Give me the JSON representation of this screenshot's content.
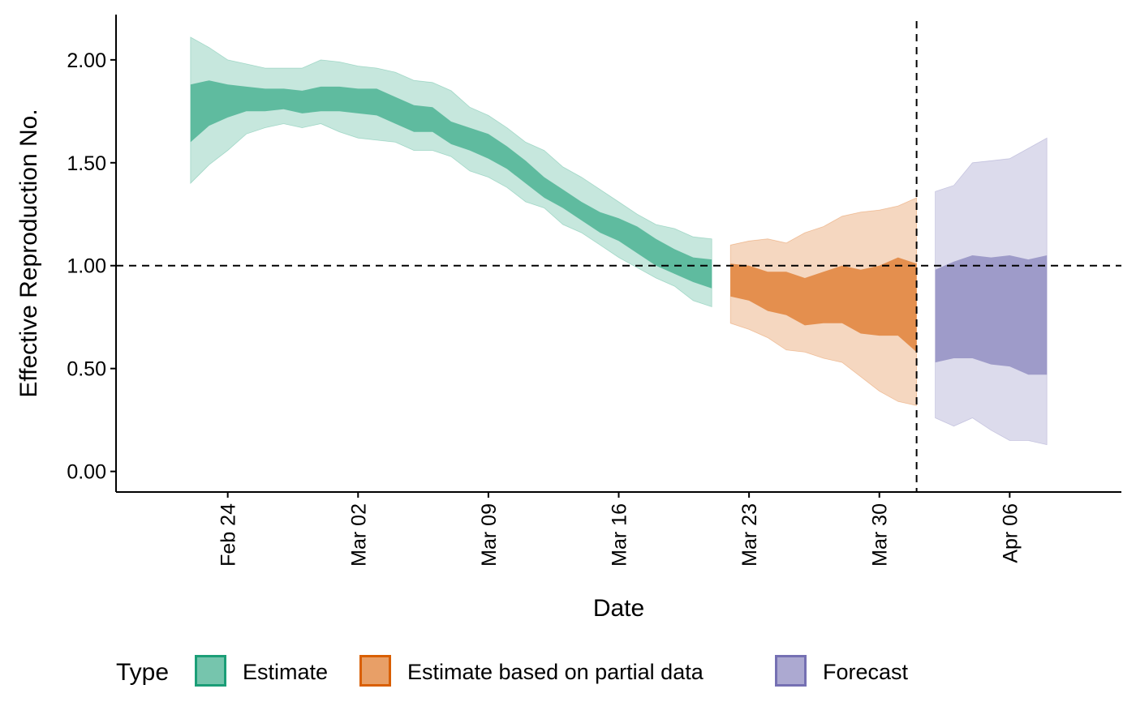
{
  "chart_data": {
    "type": "area",
    "xlabel": "Date",
    "ylabel": "Effective Reproduction No.",
    "x_type": "date",
    "xlim": [
      "2020-02-18",
      "2020-04-12"
    ],
    "ylim": [
      -0.1,
      2.22
    ],
    "y_ticks": [
      0.0,
      0.5,
      1.0,
      1.5,
      2.0
    ],
    "y_tick_labels": [
      "0.00",
      "0.50",
      "1.00",
      "1.50",
      "2.00"
    ],
    "x_ticks": [
      "2020-02-24",
      "2020-03-02",
      "2020-03-09",
      "2020-03-16",
      "2020-03-23",
      "2020-03-30",
      "2020-04-06"
    ],
    "x_tick_labels": [
      "Feb 24",
      "Mar 02",
      "Mar 09",
      "Mar 16",
      "Mar 23",
      "Mar 30",
      "Apr 06"
    ],
    "grid": false,
    "reference_lines": [
      {
        "orientation": "horizontal",
        "value": 1.0,
        "style": "dashed"
      },
      {
        "orientation": "vertical",
        "value": "2020-04-01",
        "style": "dashed"
      }
    ],
    "legend": {
      "title": "Type",
      "position": "bottom",
      "entries": [
        {
          "label": "Estimate",
          "color": "#1b9e77"
        },
        {
          "label": "Estimate based on partial data",
          "color": "#d95f02"
        },
        {
          "label": "Forecast",
          "color": "#7570b3"
        }
      ]
    },
    "series": [
      {
        "name": "Estimate",
        "color": "#1b9e77",
        "x": [
          "2020-02-22",
          "2020-02-23",
          "2020-02-24",
          "2020-02-25",
          "2020-02-26",
          "2020-02-27",
          "2020-02-28",
          "2020-02-29",
          "2020-03-01",
          "2020-03-02",
          "2020-03-03",
          "2020-03-04",
          "2020-03-05",
          "2020-03-06",
          "2020-03-07",
          "2020-03-08",
          "2020-03-09",
          "2020-03-10",
          "2020-03-11",
          "2020-03-12",
          "2020-03-13",
          "2020-03-14",
          "2020-03-15",
          "2020-03-16",
          "2020-03-17",
          "2020-03-18",
          "2020-03-19",
          "2020-03-20",
          "2020-03-21"
        ],
        "lower_90": [
          1.4,
          1.49,
          1.56,
          1.64,
          1.67,
          1.69,
          1.67,
          1.69,
          1.65,
          1.62,
          1.61,
          1.6,
          1.56,
          1.56,
          1.53,
          1.46,
          1.43,
          1.38,
          1.31,
          1.28,
          1.2,
          1.16,
          1.1,
          1.04,
          0.99,
          0.94,
          0.9,
          0.83,
          0.8
        ],
        "upper_90": [
          2.11,
          2.06,
          2.0,
          1.98,
          1.96,
          1.96,
          1.96,
          2.0,
          1.99,
          1.97,
          1.96,
          1.94,
          1.9,
          1.89,
          1.85,
          1.77,
          1.73,
          1.67,
          1.6,
          1.56,
          1.48,
          1.43,
          1.37,
          1.31,
          1.25,
          1.2,
          1.18,
          1.14,
          1.13
        ],
        "lower_50": [
          1.6,
          1.68,
          1.72,
          1.75,
          1.75,
          1.76,
          1.74,
          1.75,
          1.75,
          1.74,
          1.73,
          1.69,
          1.65,
          1.65,
          1.59,
          1.56,
          1.52,
          1.47,
          1.4,
          1.33,
          1.28,
          1.22,
          1.16,
          1.12,
          1.06,
          1.0,
          0.96,
          0.92,
          0.89
        ],
        "upper_50": [
          1.88,
          1.9,
          1.88,
          1.87,
          1.86,
          1.86,
          1.85,
          1.87,
          1.87,
          1.86,
          1.86,
          1.82,
          1.78,
          1.77,
          1.7,
          1.67,
          1.64,
          1.58,
          1.51,
          1.43,
          1.37,
          1.31,
          1.26,
          1.23,
          1.19,
          1.13,
          1.08,
          1.04,
          1.03
        ]
      },
      {
        "name": "Estimate based on partial data",
        "color": "#d95f02",
        "x": [
          "2020-03-22",
          "2020-03-23",
          "2020-03-24",
          "2020-03-25",
          "2020-03-26",
          "2020-03-27",
          "2020-03-28",
          "2020-03-29",
          "2020-03-30",
          "2020-03-31",
          "2020-04-01"
        ],
        "lower_90": [
          0.72,
          0.69,
          0.65,
          0.59,
          0.58,
          0.55,
          0.53,
          0.46,
          0.39,
          0.34,
          0.32
        ],
        "upper_90": [
          1.1,
          1.12,
          1.13,
          1.11,
          1.16,
          1.19,
          1.24,
          1.26,
          1.27,
          1.29,
          1.33
        ],
        "lower_50": [
          0.85,
          0.83,
          0.78,
          0.76,
          0.71,
          0.72,
          0.72,
          0.67,
          0.66,
          0.66,
          0.58
        ],
        "upper_50": [
          1.01,
          1.0,
          0.97,
          0.97,
          0.94,
          0.97,
          1.0,
          0.98,
          1.0,
          1.04,
          1.01
        ]
      },
      {
        "name": "Forecast",
        "color": "#7570b3",
        "x": [
          "2020-04-02",
          "2020-04-03",
          "2020-04-04",
          "2020-04-05",
          "2020-04-06",
          "2020-04-07",
          "2020-04-08"
        ],
        "lower_90": [
          0.26,
          0.22,
          0.26,
          0.2,
          0.15,
          0.15,
          0.13
        ],
        "upper_90": [
          1.36,
          1.39,
          1.5,
          1.51,
          1.52,
          1.57,
          1.62
        ],
        "lower_50": [
          0.53,
          0.55,
          0.55,
          0.52,
          0.51,
          0.47,
          0.47
        ],
        "upper_50": [
          0.98,
          1.02,
          1.05,
          1.04,
          1.05,
          1.03,
          1.05
        ]
      }
    ]
  }
}
